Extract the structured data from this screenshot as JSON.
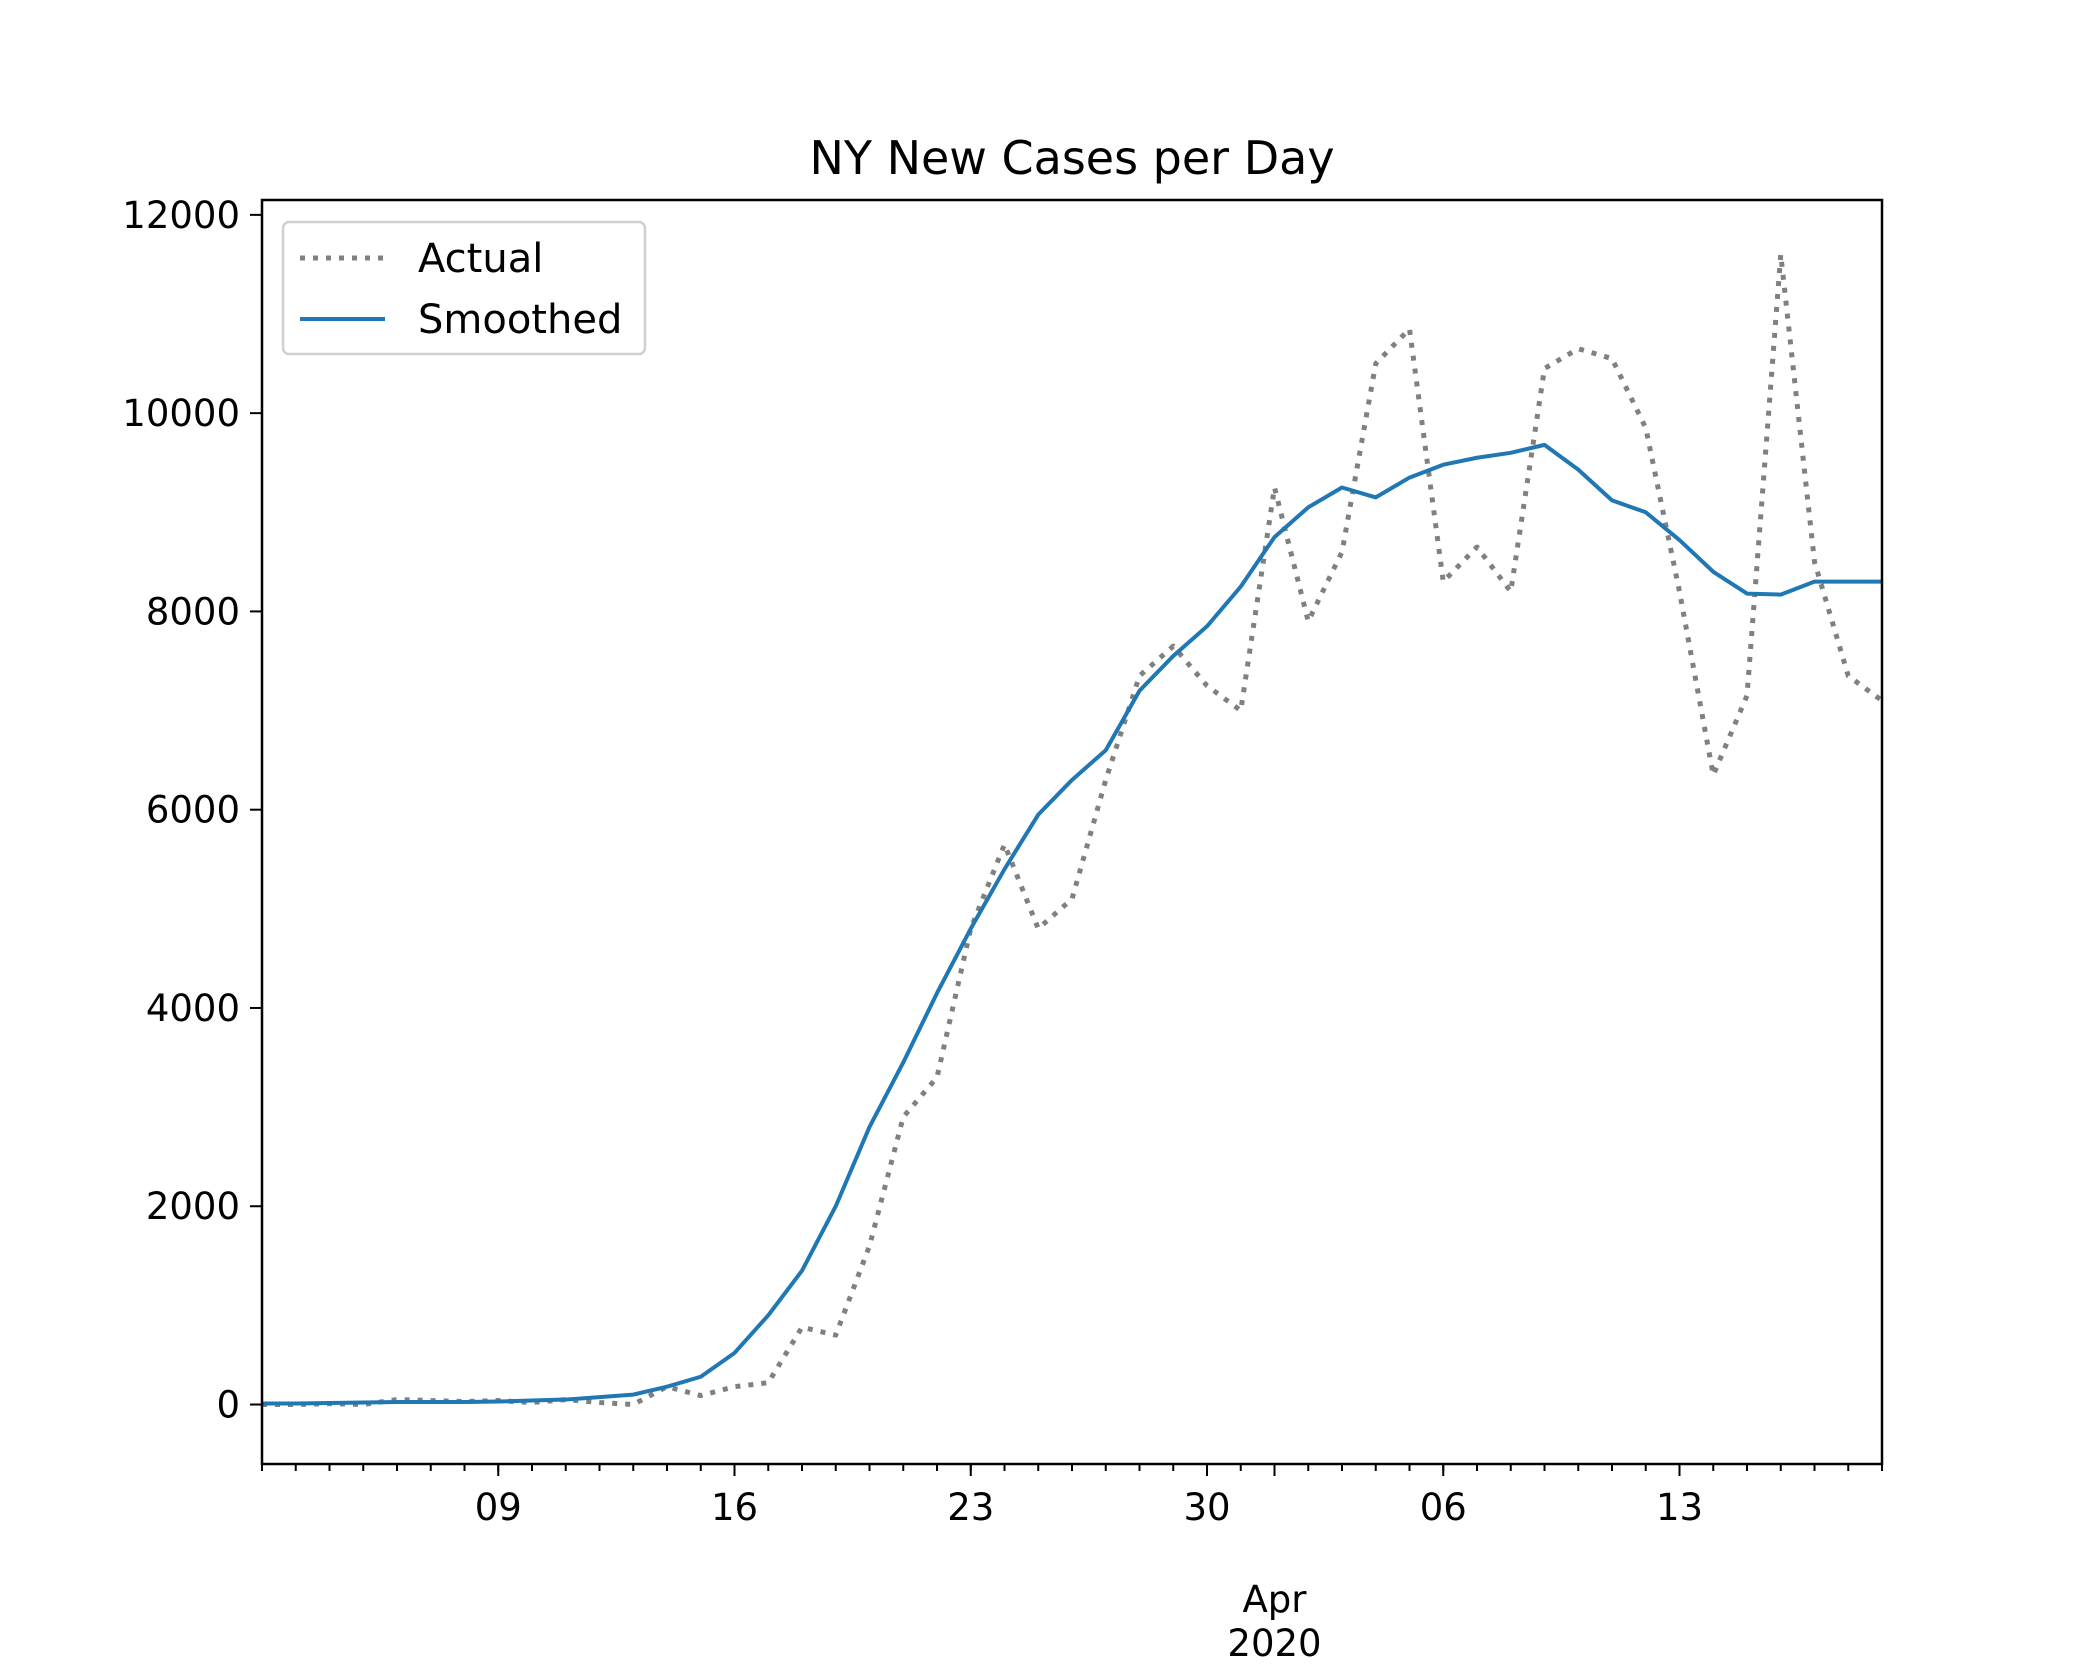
{
  "chart_data": {
    "type": "line",
    "title": "NY New Cases per Day",
    "xlabel": "",
    "ylabel": "",
    "x": [
      "2020-03-02",
      "2020-03-03",
      "2020-03-04",
      "2020-03-05",
      "2020-03-06",
      "2020-03-07",
      "2020-03-08",
      "2020-03-09",
      "2020-03-10",
      "2020-03-11",
      "2020-03-12",
      "2020-03-13",
      "2020-03-14",
      "2020-03-15",
      "2020-03-16",
      "2020-03-17",
      "2020-03-18",
      "2020-03-19",
      "2020-03-20",
      "2020-03-21",
      "2020-03-22",
      "2020-03-23",
      "2020-03-24",
      "2020-03-25",
      "2020-03-26",
      "2020-03-27",
      "2020-03-28",
      "2020-03-29",
      "2020-03-30",
      "2020-03-31",
      "2020-04-01",
      "2020-04-02",
      "2020-04-03",
      "2020-04-04",
      "2020-04-05",
      "2020-04-06",
      "2020-04-07",
      "2020-04-08",
      "2020-04-09",
      "2020-04-10",
      "2020-04-11",
      "2020-04-12",
      "2020-04-13",
      "2020-04-14",
      "2020-04-15",
      "2020-04-16",
      "2020-04-17",
      "2020-04-18",
      "2020-04-19"
    ],
    "x_range": [
      "2020-03-02",
      "2020-04-19"
    ],
    "ylim": [
      -600,
      12150
    ],
    "y_ticks": [
      0,
      2000,
      4000,
      6000,
      8000,
      10000,
      12000
    ],
    "y_tick_labels": [
      "0",
      "2000",
      "4000",
      "6000",
      "8000",
      "10000",
      "12000"
    ],
    "x_major_ticks": [
      "2020-03-09",
      "2020-03-16",
      "2020-03-23",
      "2020-03-30",
      "2020-04-06",
      "2020-04-13"
    ],
    "x_major_tick_labels": [
      "09",
      "16",
      "23",
      "30",
      "06",
      "13"
    ],
    "x_month_marker": "2020-04-01",
    "x_month_label": "Apr",
    "x_year_label": "2020",
    "grid": false,
    "legend_position": "top-left",
    "series": [
      {
        "name": "Actual",
        "style": "dotted",
        "color": "#808080",
        "values": [
          0,
          0,
          10,
          0,
          50,
          40,
          30,
          40,
          20,
          50,
          20,
          0,
          180,
          90,
          180,
          220,
          780,
          700,
          1600,
          2900,
          3300,
          4800,
          5650,
          4800,
          5100,
          6300,
          7350,
          7650,
          7250,
          7000,
          9250,
          7900,
          8600,
          10500,
          10850,
          8300,
          8650,
          8200,
          10450,
          10650,
          10550,
          9850,
          8200,
          6350,
          7150,
          11600,
          8500,
          7350,
          7100
        ]
      },
      {
        "name": "Smoothed",
        "style": "solid",
        "color": "#1f77b4",
        "values": [
          10,
          10,
          15,
          20,
          25,
          25,
          25,
          30,
          40,
          50,
          75,
          100,
          180,
          280,
          520,
          900,
          1350,
          2000,
          2800,
          3450,
          4150,
          4800,
          5400,
          5950,
          6300,
          6600,
          7200,
          7550,
          7850,
          8250,
          8750,
          9050,
          9250,
          9150,
          9350,
          9480,
          9550,
          9600,
          9680,
          9430,
          9120,
          9000,
          8720,
          8400,
          8180,
          8170,
          8300,
          8300,
          8300
        ]
      }
    ]
  }
}
